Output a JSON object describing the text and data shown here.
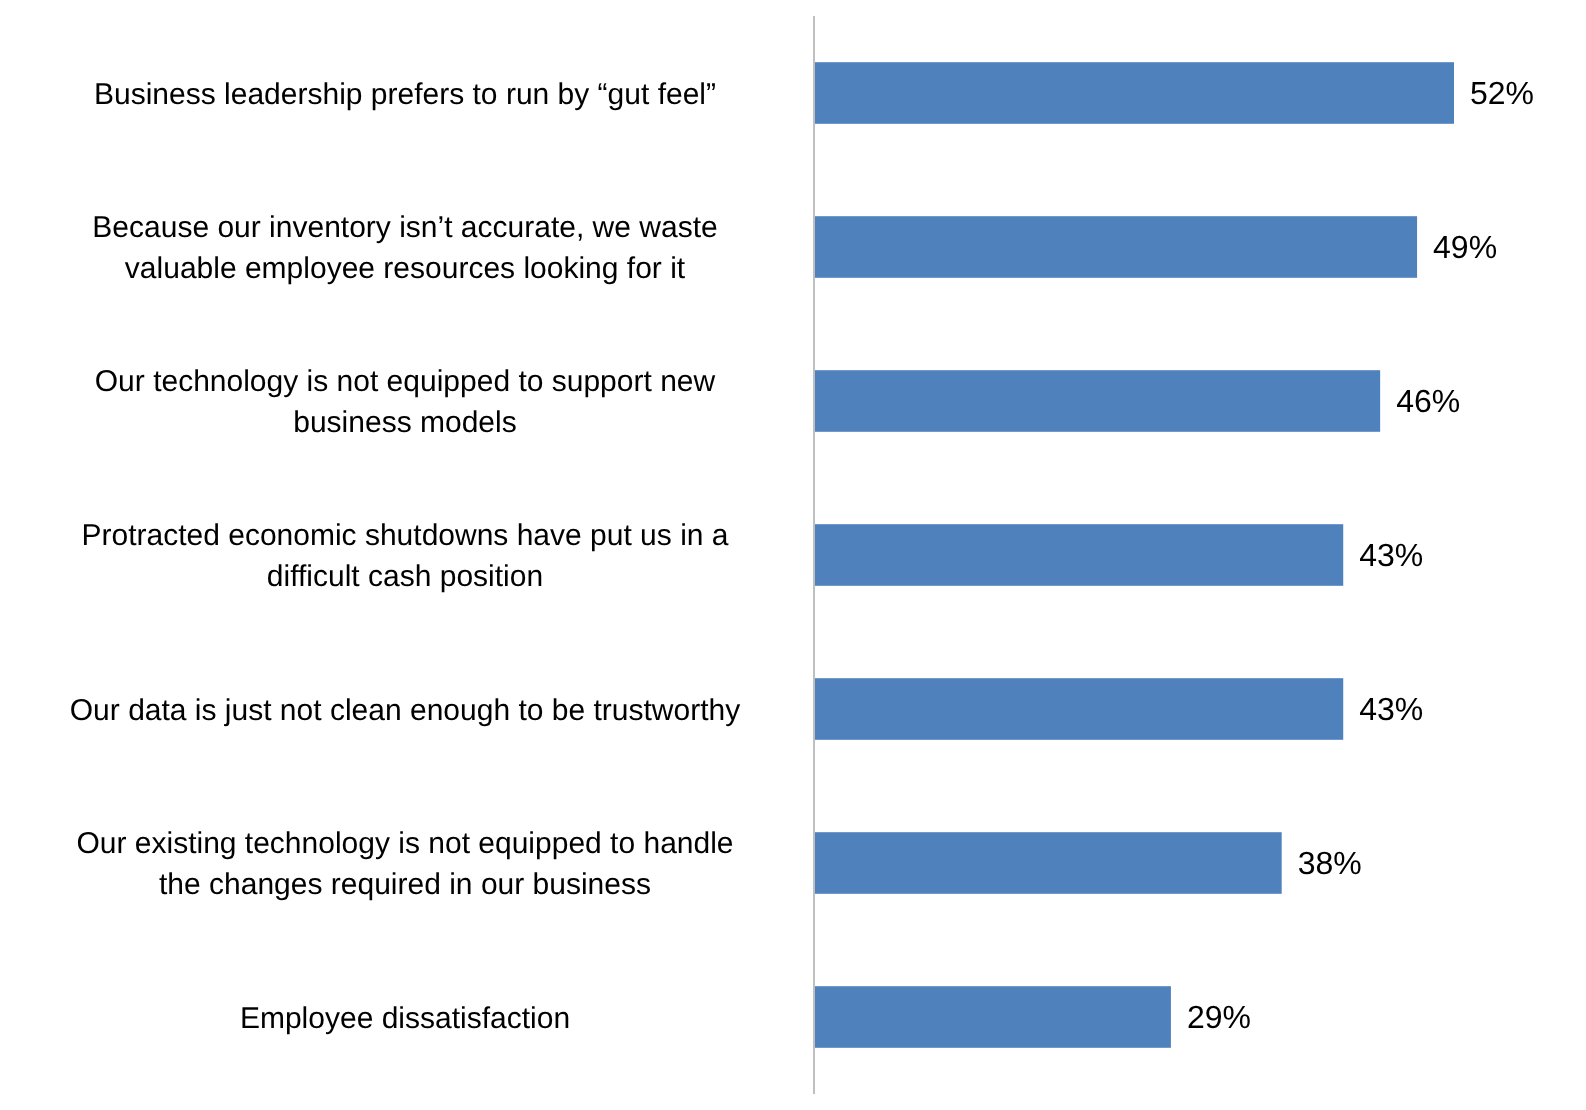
{
  "chart_data": {
    "type": "bar",
    "orientation": "horizontal",
    "categories": [
      "Business leadership prefers to run by “gut feel”",
      "Because our inventory isn’t accurate, we waste valuable employee resources looking for it",
      "Our technology is not equipped to support new business models",
      "Protracted economic shutdowns have put us in a difficult cash position",
      "Our data is just not clean enough to be trustworthy",
      "Our existing technology is not equipped to handle the changes required in our business",
      "Employee dissatisfaction"
    ],
    "values": [
      52,
      49,
      46,
      43,
      43,
      38,
      29
    ],
    "value_labels": [
      "52%",
      "49%",
      "46%",
      "43%",
      "43%",
      "38%",
      "29%"
    ],
    "color": "#4f81bd"
  }
}
